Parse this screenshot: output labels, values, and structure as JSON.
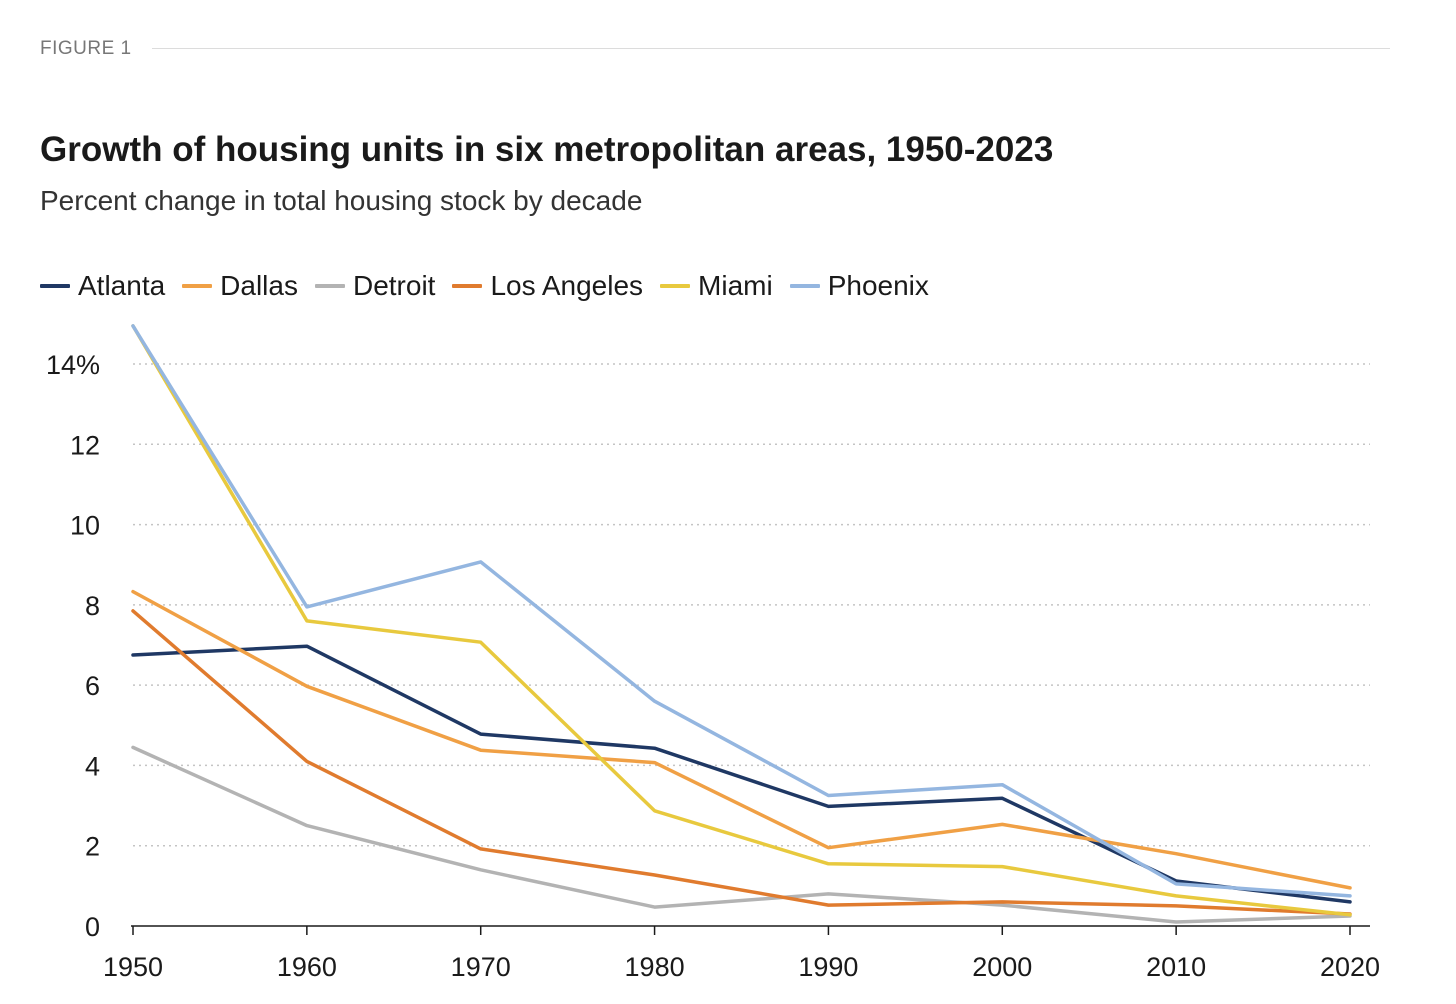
{
  "figure": {
    "label": "FIGURE 1"
  },
  "chart_data": {
    "type": "line",
    "title": "Growth of housing units in six metropolitan areas, 1950-2023",
    "subtitle": "Percent change in total housing stock by decade",
    "xlabel": "",
    "ylabel": "",
    "x": [
      1950,
      1960,
      1970,
      1980,
      1990,
      2000,
      2010,
      2020
    ],
    "xlim": [
      1950,
      2020
    ],
    "ylim": [
      0,
      14
    ],
    "yticks": [
      0,
      2,
      4,
      6,
      8,
      10,
      12,
      14
    ],
    "ytick_labels": [
      "0",
      "2",
      "4",
      "6",
      "8",
      "10",
      "12",
      "14%"
    ],
    "xtick_labels": [
      "1950",
      "1960",
      "1970",
      "1980",
      "1990",
      "2000",
      "2010",
      "2020"
    ],
    "grid": "horizontal dotted",
    "legend_position": "top-left",
    "series": [
      {
        "name": "Atlanta",
        "color": "#1f3864",
        "values": [
          6.75,
          6.97,
          4.78,
          4.43,
          2.98,
          3.18,
          1.12,
          0.6
        ]
      },
      {
        "name": "Dallas",
        "color": "#f0a045",
        "values": [
          8.33,
          5.97,
          4.38,
          4.07,
          1.95,
          2.53,
          1.8,
          0.95
        ]
      },
      {
        "name": "Detroit",
        "color": "#b3b3b3",
        "values": [
          4.45,
          2.5,
          1.4,
          0.47,
          0.8,
          0.52,
          0.1,
          0.25
        ]
      },
      {
        "name": "Los Angeles",
        "color": "#e07b2e",
        "values": [
          7.85,
          4.1,
          1.92,
          1.27,
          0.52,
          0.6,
          0.5,
          0.3
        ]
      },
      {
        "name": "Miami",
        "color": "#e8c93e",
        "values": [
          14.95,
          7.6,
          7.07,
          2.87,
          1.55,
          1.48,
          0.75,
          0.28
        ]
      },
      {
        "name": "Phoenix",
        "color": "#94b6e0",
        "values": [
          14.95,
          7.95,
          9.07,
          5.6,
          3.25,
          3.52,
          1.05,
          0.75
        ]
      }
    ]
  }
}
